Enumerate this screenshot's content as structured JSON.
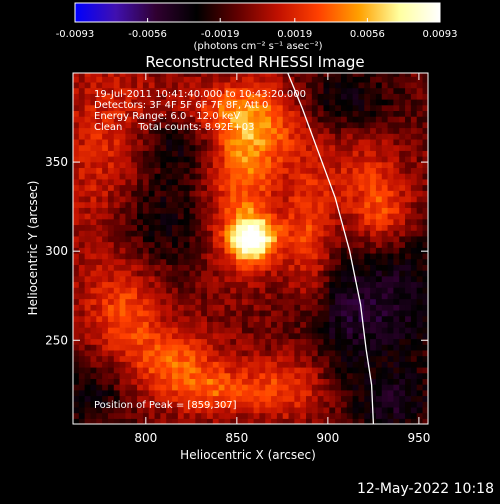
{
  "chart_data": {
    "type": "heatmap",
    "title": "Reconstructed RHESSI Image",
    "xlabel": "Heliocentric X (arcsec)",
    "ylabel": "Heliocentric Y (arcsec)",
    "xlim": [
      760,
      955
    ],
    "ylim": [
      203,
      400
    ],
    "x_ticks": [
      800,
      850,
      900,
      950
    ],
    "y_ticks": [
      250,
      300,
      350
    ],
    "colorbar": {
      "min": -0.0093,
      "max": 0.0093,
      "ticks": [
        "-0.0093",
        "-0.0056",
        "-0.0019",
        "0.0019",
        "0.0056",
        "0.0093"
      ],
      "unit_label": "(photons cm⁻² s⁻¹ asec⁻²)",
      "colormap": [
        "#0000ff",
        "#4010b0",
        "#300030",
        "#000000",
        "#600000",
        "#c01000",
        "#ff4000",
        "#ffa000",
        "#ffffa0",
        "#ffffff"
      ]
    },
    "annotations": [
      "19-Jul-2011 10:41:40.000 to 10:43:20.000",
      "Detectors: 3F 4F 5F 6F 7F 8F, Att 0",
      "Energy Range: 6.0 - 12.0 keV",
      "Clean     Total counts: 8.92E+03"
    ],
    "peak_text": "Position of Peak = [859,307]",
    "peak": [
      859,
      307
    ],
    "limb": [
      [
        878,
        400
      ],
      [
        886,
        380
      ],
      [
        895,
        355
      ],
      [
        904,
        330
      ],
      [
        912,
        300
      ],
      [
        918,
        270
      ],
      [
        921,
        245
      ],
      [
        924,
        225
      ],
      [
        925,
        203
      ]
    ],
    "sources": [
      {
        "x": 859,
        "y": 307,
        "amp": 0.0093,
        "sx": 9,
        "sy": 9
      },
      {
        "x": 852,
        "y": 330,
        "amp": 0.004,
        "sx": 14,
        "sy": 30
      },
      {
        "x": 860,
        "y": 370,
        "amp": 0.005,
        "sx": 18,
        "sy": 18
      },
      {
        "x": 890,
        "y": 305,
        "amp": 0.004,
        "sx": 10,
        "sy": 30
      },
      {
        "x": 780,
        "y": 340,
        "amp": 0.0035,
        "sx": 20,
        "sy": 50
      },
      {
        "x": 930,
        "y": 320,
        "amp": 0.004,
        "sx": 12,
        "sy": 14
      },
      {
        "x": 920,
        "y": 345,
        "amp": 0.0025,
        "sx": 16,
        "sy": 16
      },
      {
        "x": 815,
        "y": 240,
        "amp": 0.004,
        "sx": 18,
        "sy": 12
      },
      {
        "x": 840,
        "y": 222,
        "amp": 0.004,
        "sx": 22,
        "sy": 10
      },
      {
        "x": 880,
        "y": 225,
        "amp": 0.003,
        "sx": 14,
        "sy": 14
      },
      {
        "x": 790,
        "y": 265,
        "amp": 0.003,
        "sx": 14,
        "sy": 16
      },
      {
        "x": 830,
        "y": 380,
        "amp": 0.0025,
        "sx": 20,
        "sy": 10
      }
    ],
    "negatives": [
      {
        "x": 800,
        "y": 320,
        "amp": 0.0035,
        "sx": 22,
        "sy": 22
      },
      {
        "x": 820,
        "y": 365,
        "amp": 0.003,
        "sx": 18,
        "sy": 14
      },
      {
        "x": 905,
        "y": 265,
        "amp": 0.003,
        "sx": 18,
        "sy": 25
      },
      {
        "x": 940,
        "y": 275,
        "amp": 0.003,
        "sx": 20,
        "sy": 30
      },
      {
        "x": 910,
        "y": 385,
        "amp": 0.0025,
        "sx": 20,
        "sy": 12
      },
      {
        "x": 770,
        "y": 220,
        "amp": 0.0025,
        "sx": 14,
        "sy": 14
      },
      {
        "x": 935,
        "y": 215,
        "amp": 0.003,
        "sx": 15,
        "sy": 12
      }
    ]
  },
  "timestamp": "12-May-2022 10:18"
}
